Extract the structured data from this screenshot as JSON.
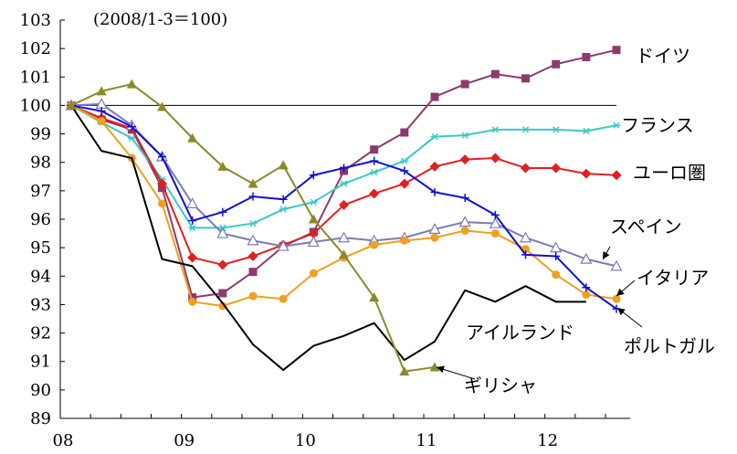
{
  "chart_data": {
    "type": "line",
    "subtitle": "(2008/1-3＝100)",
    "xlabel": "",
    "ylabel": "",
    "x_tick_labels": [
      "08",
      "09",
      "10",
      "11",
      "12"
    ],
    "x_tick_years": [
      2008,
      2009,
      2010,
      2011,
      2012
    ],
    "ylim": [
      89,
      103
    ],
    "y_ticks": [
      89,
      90,
      91,
      92,
      93,
      94,
      95,
      96,
      97,
      98,
      99,
      100,
      101,
      102,
      103
    ],
    "reference_line": 100,
    "legend_placement": "series labels at right",
    "series": [
      {
        "name": "ドイツ",
        "color": "#8e3a6e",
        "marker": "square",
        "start": "2008Q1",
        "values": [
          100,
          99.5,
          99.15,
          97.1,
          93.25,
          93.4,
          94.15,
          95.05,
          95.55,
          97.7,
          98.45,
          99.05,
          100.3,
          100.75,
          101.1,
          100.95,
          101.45,
          101.7,
          101.95
        ]
      },
      {
        "name": "フランス",
        "color": "#3cc8c8",
        "marker": "star",
        "start": "2008Q1",
        "values": [
          100,
          99.4,
          98.85,
          97.4,
          95.7,
          95.7,
          95.85,
          96.35,
          96.6,
          97.25,
          97.65,
          98.05,
          98.9,
          98.95,
          99.15,
          99.15,
          99.15,
          99.1,
          99.3
        ]
      },
      {
        "name": "ユーロ圏",
        "color": "#e02020",
        "marker": "diamond",
        "start": "2008Q1",
        "values": [
          100,
          99.55,
          99.2,
          97.25,
          94.65,
          94.4,
          94.7,
          95.1,
          95.5,
          96.5,
          96.9,
          97.25,
          97.85,
          98.1,
          98.15,
          97.8,
          97.8,
          97.6,
          97.55
        ]
      },
      {
        "name": "スペイン",
        "color": "#7b7bb8",
        "marker": "triangle-open",
        "start": "2008Q1",
        "values": [
          100,
          100.05,
          99.3,
          98.2,
          96.55,
          95.5,
          95.25,
          95.05,
          95.2,
          95.35,
          95.25,
          95.35,
          95.65,
          95.9,
          95.85,
          95.35,
          95.0,
          94.6,
          94.35
        ]
      },
      {
        "name": "イタリア",
        "color": "#f0a020",
        "marker": "circle",
        "start": "2008Q1",
        "values": [
          100,
          99.45,
          98.15,
          96.55,
          93.1,
          92.95,
          93.3,
          93.2,
          94.1,
          94.65,
          95.1,
          95.25,
          95.35,
          95.6,
          95.5,
          94.95,
          94.05,
          93.35,
          93.2
        ]
      },
      {
        "name": "ポルトガル",
        "color": "#1010d0",
        "marker": "plus",
        "start": "2008Q1",
        "values": [
          100,
          99.8,
          99.25,
          98.2,
          95.95,
          96.25,
          96.8,
          96.7,
          97.55,
          97.8,
          98.05,
          97.7,
          96.95,
          96.75,
          96.15,
          94.75,
          94.7,
          93.6,
          92.85
        ]
      },
      {
        "name": "アイルランド",
        "color": "#000000",
        "marker": "none",
        "start": "2008Q1",
        "values": [
          100,
          98.4,
          98.15,
          94.6,
          94.35,
          93.05,
          91.6,
          90.7,
          91.55,
          91.9,
          92.35,
          91.05,
          91.7,
          93.5,
          93.1,
          93.65,
          93.1,
          93.1,
          null
        ]
      },
      {
        "name": "ギリシャ",
        "color": "#8a8a2a",
        "marker": "triangle",
        "start": "2008Q1",
        "values": [
          100,
          100.5,
          100.75,
          99.95,
          98.85,
          97.85,
          97.25,
          97.9,
          96.0,
          94.75,
          93.25,
          90.65,
          90.8
        ]
      }
    ]
  }
}
